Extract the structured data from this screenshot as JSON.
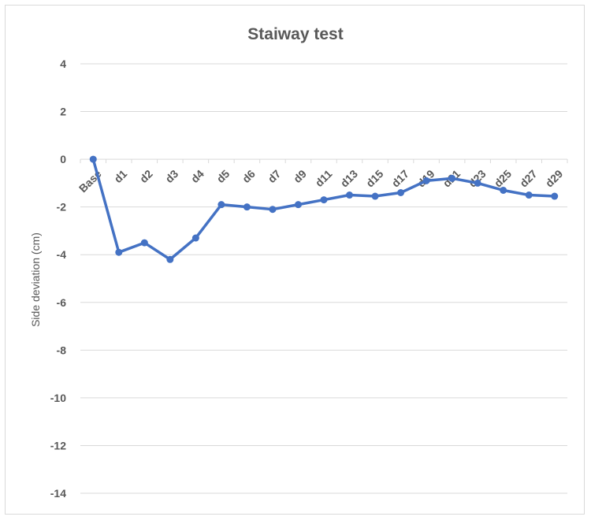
{
  "chart_data": {
    "type": "line",
    "title": "Staiway test",
    "xlabel": "",
    "ylabel": "Side deviation  (cm)",
    "ylim": [
      -14,
      4
    ],
    "yticks": [
      4,
      2,
      0,
      -2,
      -4,
      -6,
      -8,
      -10,
      -12,
      -14
    ],
    "grid": true,
    "categories": [
      "Base",
      "d1",
      "d2",
      "d3",
      "d4",
      "d5",
      "d6",
      "d7",
      "d9",
      "d11",
      "d13",
      "d15",
      "d17",
      "d19",
      "d21",
      "d23",
      "d25",
      "d27",
      "d29"
    ],
    "series": [
      {
        "name": "Side deviation",
        "color": "#4472C4",
        "values": [
          0,
          -3.9,
          -3.5,
          -4.2,
          -3.3,
          -1.9,
          -2.0,
          -2.1,
          -1.9,
          -1.7,
          -1.5,
          -1.55,
          -1.4,
          -0.9,
          -0.8,
          -1.0,
          -1.3,
          -1.5,
          -1.55
        ]
      }
    ]
  }
}
